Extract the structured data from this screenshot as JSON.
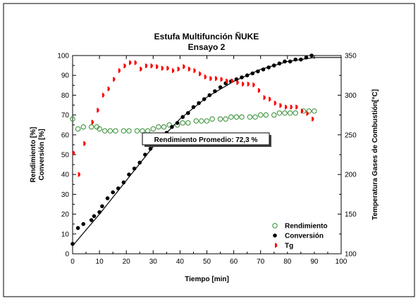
{
  "chart_data": {
    "type": "scatter",
    "title": "Estufa Multifunción ÑUKE",
    "subtitle": "Ensayo 2",
    "xlabel": "Tiempo [min]",
    "ylabel_left": [
      "Rendimiento [%]",
      "Conversión [%]"
    ],
    "ylabel_right": "Temperatura Gases de Combustión[°C]",
    "xlim": [
      0,
      100
    ],
    "ylim_left": [
      0,
      100
    ],
    "ylim_right": [
      100,
      350
    ],
    "x_ticks": [
      "0",
      "10",
      "20",
      "30",
      "40",
      "50",
      "60",
      "70",
      "80",
      "90",
      "100"
    ],
    "y_left_ticks": [
      "0",
      "10",
      "20",
      "30",
      "40",
      "50",
      "60",
      "70",
      "80",
      "90",
      "100"
    ],
    "y_right_ticks": [
      "100",
      "150",
      "200",
      "250",
      "300",
      "350"
    ],
    "grid": false,
    "legend_position": "bottom-right",
    "annotation": "Rendimiento Promedio: 72,3 %",
    "series": [
      {
        "name": "Rendimiento",
        "axis": "left",
        "marker": "open-circle",
        "color": "#2e8b2e",
        "points": [
          [
            0,
            68
          ],
          [
            2,
            63
          ],
          [
            4,
            64
          ],
          [
            7,
            64
          ],
          [
            9,
            64
          ],
          [
            10,
            63
          ],
          [
            12,
            62
          ],
          [
            14,
            62
          ],
          [
            16,
            62
          ],
          [
            19,
            62
          ],
          [
            21,
            62
          ],
          [
            24,
            62
          ],
          [
            26,
            62
          ],
          [
            28,
            62
          ],
          [
            30,
            63
          ],
          [
            32,
            64
          ],
          [
            34,
            64
          ],
          [
            36,
            65
          ],
          [
            39,
            65
          ],
          [
            41,
            66
          ],
          [
            43,
            66
          ],
          [
            46,
            67
          ],
          [
            48,
            67
          ],
          [
            50,
            67
          ],
          [
            52,
            68
          ],
          [
            55,
            68
          ],
          [
            57,
            68
          ],
          [
            59,
            69
          ],
          [
            61,
            69
          ],
          [
            63,
            69
          ],
          [
            66,
            69
          ],
          [
            68,
            69
          ],
          [
            70,
            70
          ],
          [
            72,
            70
          ],
          [
            75,
            70
          ],
          [
            77,
            71
          ],
          [
            79,
            71
          ],
          [
            81,
            71
          ],
          [
            83,
            71
          ],
          [
            86,
            72
          ],
          [
            88,
            72
          ],
          [
            90,
            72
          ]
        ]
      },
      {
        "name": "Conversión",
        "axis": "left",
        "marker": "filled-circle",
        "color": "#000000",
        "points": [
          [
            0,
            5
          ],
          [
            2,
            13
          ],
          [
            4,
            15
          ],
          [
            7,
            17
          ],
          [
            8,
            19
          ],
          [
            10,
            21
          ],
          [
            11,
            24
          ],
          [
            13,
            28
          ],
          [
            15,
            31
          ],
          [
            17,
            33
          ],
          [
            19,
            36
          ],
          [
            21,
            40
          ],
          [
            23,
            43
          ],
          [
            25,
            46
          ],
          [
            27,
            50
          ],
          [
            29,
            53
          ],
          [
            31,
            56
          ],
          [
            33,
            59
          ],
          [
            35,
            61
          ],
          [
            37,
            64
          ],
          [
            39,
            66
          ],
          [
            41,
            69
          ],
          [
            43,
            71
          ],
          [
            45,
            74
          ],
          [
            47,
            76
          ],
          [
            49,
            78
          ],
          [
            51,
            80
          ],
          [
            53,
            82
          ],
          [
            55,
            84
          ],
          [
            57,
            86
          ],
          [
            59,
            87
          ],
          [
            61,
            88
          ],
          [
            63,
            89
          ],
          [
            65,
            90
          ],
          [
            67,
            91
          ],
          [
            69,
            92
          ],
          [
            71,
            93
          ],
          [
            73,
            94
          ],
          [
            75,
            95
          ],
          [
            77,
            96
          ],
          [
            79,
            97
          ],
          [
            81,
            97
          ],
          [
            83,
            98
          ],
          [
            85,
            98
          ],
          [
            87,
            99
          ],
          [
            89,
            100
          ]
        ]
      },
      {
        "name": "Tg",
        "axis": "right",
        "marker": "half-filled-circle",
        "color": "#ff0000",
        "points": [
          [
            0,
            227
          ],
          [
            2,
            200
          ],
          [
            4,
            239
          ],
          [
            7,
            266
          ],
          [
            9,
            281
          ],
          [
            11,
            300
          ],
          [
            13,
            308
          ],
          [
            15,
            320
          ],
          [
            17,
            331
          ],
          [
            19,
            337
          ],
          [
            21,
            341
          ],
          [
            23,
            341
          ],
          [
            25,
            333
          ],
          [
            27,
            337
          ],
          [
            29,
            337
          ],
          [
            31,
            336
          ],
          [
            33,
            334
          ],
          [
            35,
            334
          ],
          [
            37,
            331
          ],
          [
            39,
            333
          ],
          [
            41,
            336
          ],
          [
            43,
            333
          ],
          [
            45,
            331
          ],
          [
            47,
            327
          ],
          [
            49,
            323
          ],
          [
            51,
            321
          ],
          [
            53,
            321
          ],
          [
            55,
            320
          ],
          [
            57,
            318
          ],
          [
            59,
            318
          ],
          [
            61,
            316
          ],
          [
            63,
            314
          ],
          [
            65,
            314
          ],
          [
            67,
            313
          ],
          [
            69,
            306
          ],
          [
            71,
            297
          ],
          [
            73,
            295
          ],
          [
            75,
            290
          ],
          [
            77,
            287
          ],
          [
            79,
            285
          ],
          [
            81,
            285
          ],
          [
            83,
            285
          ],
          [
            85,
            280
          ],
          [
            87,
            277
          ],
          [
            89,
            270
          ]
        ]
      },
      {
        "name": "",
        "axis": "left",
        "marker": "line",
        "color": "#000000",
        "points": [
          [
            0,
            4
          ],
          [
            10,
            20
          ],
          [
            20,
            37
          ],
          [
            30,
            54
          ],
          [
            40,
            68
          ],
          [
            50,
            79
          ],
          [
            60,
            87
          ],
          [
            70,
            93
          ],
          [
            80,
            97
          ],
          [
            90,
            99
          ],
          [
            100,
            99
          ]
        ]
      }
    ]
  }
}
